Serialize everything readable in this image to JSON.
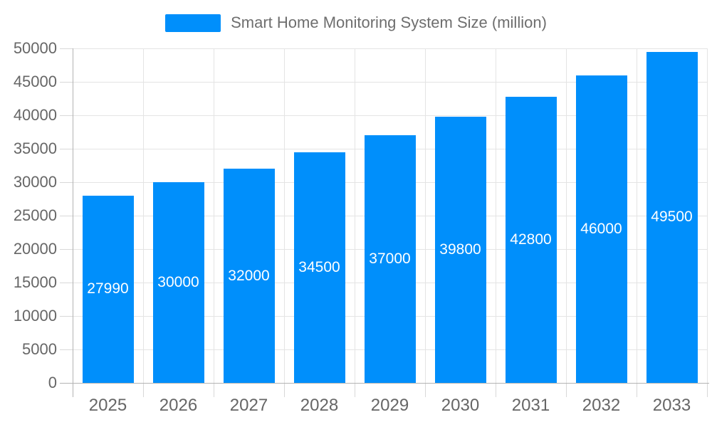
{
  "chart_data": {
    "type": "bar",
    "title": "Smart Home Monitoring System Size (million)",
    "categories": [
      "2025",
      "2026",
      "2027",
      "2028",
      "2029",
      "2030",
      "2031",
      "2032",
      "2033"
    ],
    "series": [
      {
        "name": "Smart Home Monitoring System Size (million)",
        "values": [
          27990,
          30000,
          32000,
          34500,
          37000,
          39800,
          42800,
          46000,
          49500
        ]
      }
    ],
    "bar_labels": [
      "27990",
      "30000",
      "32000",
      "34500",
      "37000",
      "39800",
      "42800",
      "46000",
      "49500"
    ],
    "xlabel": "",
    "ylabel": "",
    "ylim": [
      0,
      50000
    ],
    "ytick_step": 5000,
    "yticks": [
      "0",
      "5000",
      "10000",
      "15000",
      "20000",
      "25000",
      "30000",
      "35000",
      "40000",
      "45000",
      "50000"
    ],
    "grid": "on",
    "legend_position": "top-center",
    "colors": {
      "bar": "#008FFB",
      "bar_label_text": "#ffffff",
      "grid_line": "#e4e4e4",
      "axis_line": "#b3b3b3",
      "tick_line": "#d8d8d8",
      "axis_text": "#666666",
      "legend_text": "#6e6e6e",
      "background": "#ffffff"
    }
  }
}
